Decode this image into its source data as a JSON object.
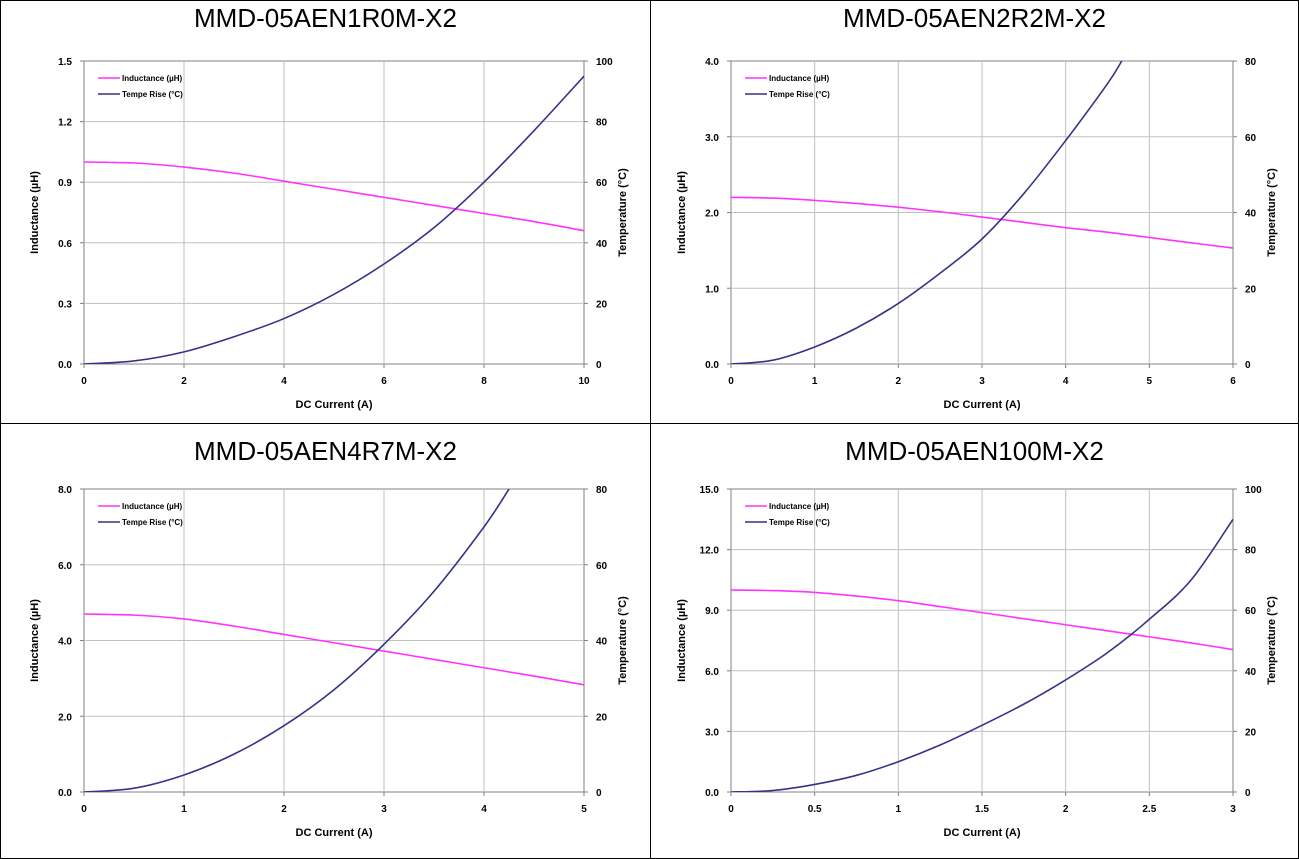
{
  "colors": {
    "inductance": "#ff33ff",
    "temperature": "#33338a",
    "grid": "#c0c0c0",
    "axis": "#808080"
  },
  "chart_data": [
    {
      "type": "line",
      "title": "MMD-05AEN1R0M-X2",
      "xlabel": "DC Current (A)",
      "ylabel": "Inductance (µH)",
      "y2label": "Temperature (°C)",
      "xlim": [
        0,
        10
      ],
      "ylim": [
        0,
        1.5
      ],
      "y2lim": [
        0,
        100
      ],
      "xticks": [
        "0",
        "2",
        "4",
        "6",
        "8",
        "10"
      ],
      "yticks": [
        "0.0",
        "0.3",
        "0.6",
        "0.9",
        "1.2",
        "1.5"
      ],
      "y2ticks": [
        "0",
        "20",
        "40",
        "60",
        "80",
        "100"
      ],
      "legend": "top-left",
      "grid": true,
      "series": [
        {
          "name": "Inductance (µH)",
          "axis": "left",
          "x": [
            0,
            1,
            2,
            3,
            4,
            5,
            6,
            7,
            8,
            9,
            10
          ],
          "y": [
            1.0,
            0.995,
            0.975,
            0.945,
            0.905,
            0.865,
            0.825,
            0.785,
            0.745,
            0.705,
            0.66
          ]
        },
        {
          "name": "Tempe Rise (°C)",
          "axis": "right",
          "x": [
            0,
            1,
            2,
            3,
            4,
            5,
            6,
            7,
            8,
            9,
            10
          ],
          "y": [
            0,
            1,
            4,
            9,
            15,
            23,
            33,
            45,
            60,
            77,
            95
          ]
        }
      ]
    },
    {
      "type": "line",
      "title": "MMD-05AEN2R2M-X2",
      "xlabel": "DC Current (A)",
      "ylabel": "Inductance (µH)",
      "y2label": "Temperature (°C)",
      "xlim": [
        0,
        6
      ],
      "ylim": [
        0,
        4.0
      ],
      "y2lim": [
        0,
        80
      ],
      "xticks": [
        "0",
        "1",
        "2",
        "3",
        "4",
        "5",
        "6"
      ],
      "yticks": [
        "0.0",
        "1.0",
        "2.0",
        "3.0",
        "4.0"
      ],
      "y2ticks": [
        "0",
        "20",
        "40",
        "60",
        "80"
      ],
      "legend": "top-left",
      "grid": true,
      "series": [
        {
          "name": "Inductance (µH)",
          "axis": "left",
          "x": [
            0,
            0.5,
            1,
            1.5,
            2,
            2.5,
            3,
            3.5,
            4,
            4.5,
            5,
            5.5,
            6
          ],
          "y": [
            2.2,
            2.19,
            2.16,
            2.12,
            2.07,
            2.01,
            1.94,
            1.87,
            1.8,
            1.74,
            1.67,
            1.6,
            1.53
          ]
        },
        {
          "name": "Tempe Rise (°C)",
          "axis": "right",
          "x": [
            0,
            0.5,
            1,
            1.5,
            2,
            2.5,
            3,
            3.5,
            4,
            4.5,
            4.67
          ],
          "y": [
            0,
            1,
            4.5,
            9.5,
            16,
            24,
            33,
            45,
            59,
            74,
            80
          ]
        }
      ]
    },
    {
      "type": "line",
      "title": "MMD-05AEN4R7M-X2",
      "xlabel": "DC Current (A)",
      "ylabel": "Inductance (µH)",
      "y2label": "Temperature (°C)",
      "xlim": [
        0,
        5
      ],
      "ylim": [
        0,
        8.0
      ],
      "y2lim": [
        0,
        80
      ],
      "xticks": [
        "0",
        "1",
        "2",
        "3",
        "4",
        "5"
      ],
      "yticks": [
        "0.0",
        "2.0",
        "4.0",
        "6.0",
        "8.0"
      ],
      "y2ticks": [
        "0",
        "20",
        "40",
        "60",
        "80"
      ],
      "legend": "top-left",
      "grid": true,
      "series": [
        {
          "name": "Inductance (µH)",
          "axis": "left",
          "x": [
            0,
            0.5,
            1,
            1.5,
            2,
            2.5,
            3,
            3.5,
            4,
            4.5,
            5
          ],
          "y": [
            4.7,
            4.67,
            4.57,
            4.38,
            4.16,
            3.94,
            3.72,
            3.5,
            3.28,
            3.06,
            2.83
          ]
        },
        {
          "name": "Tempe Rise (°C)",
          "axis": "right",
          "x": [
            0,
            0.5,
            1,
            1.5,
            2,
            2.5,
            3,
            3.5,
            4,
            4.25
          ],
          "y": [
            0,
            1,
            4.5,
            10,
            17.5,
            27,
            39,
            53,
            70,
            80
          ]
        }
      ]
    },
    {
      "type": "line",
      "title": "MMD-05AEN100M-X2",
      "xlabel": "DC Current (A)",
      "ylabel": "Inductance (µH)",
      "y2label": "Temperature (°C)",
      "xlim": [
        0,
        3
      ],
      "ylim": [
        0,
        15.0
      ],
      "y2lim": [
        0,
        100
      ],
      "xticks": [
        "0",
        "0.5",
        "1",
        "1.5",
        "2",
        "2.5",
        "3"
      ],
      "yticks": [
        "0.0",
        "3.0",
        "6.0",
        "9.0",
        "12.0",
        "15.0"
      ],
      "y2ticks": [
        "0",
        "20",
        "40",
        "60",
        "80",
        "100"
      ],
      "legend": "top-left",
      "grid": true,
      "series": [
        {
          "name": "Inductance (µH)",
          "axis": "left",
          "x": [
            0,
            0.25,
            0.5,
            0.75,
            1,
            1.25,
            1.5,
            1.75,
            2,
            2.25,
            2.5,
            2.75,
            3
          ],
          "y": [
            10.0,
            9.97,
            9.88,
            9.7,
            9.47,
            9.18,
            8.88,
            8.58,
            8.28,
            7.98,
            7.68,
            7.38,
            7.05
          ]
        },
        {
          "name": "Tempe Rise (°C)",
          "axis": "right",
          "x": [
            0,
            0.25,
            0.5,
            0.75,
            1,
            1.25,
            1.5,
            1.75,
            2,
            2.25,
            2.5,
            2.75,
            3
          ],
          "y": [
            0,
            0.5,
            2.5,
            5.5,
            10,
            15.5,
            22,
            29,
            37,
            46,
            57,
            70,
            90
          ]
        }
      ]
    }
  ]
}
